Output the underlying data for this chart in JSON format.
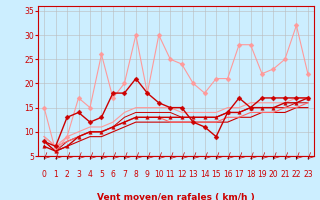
{
  "title": "",
  "xlabel": "Vent moyen/en rafales ( km/h )",
  "bg_color": "#cceeff",
  "grid_color": "#bbbbbb",
  "axis_color": "#cc0000",
  "label_color": "#cc0000",
  "xlim": [
    -0.5,
    23.5
  ],
  "ylim": [
    5,
    36
  ],
  "yticks": [
    5,
    10,
    15,
    20,
    25,
    30,
    35
  ],
  "xticks": [
    0,
    1,
    2,
    3,
    4,
    5,
    6,
    7,
    8,
    9,
    10,
    11,
    12,
    13,
    14,
    15,
    16,
    17,
    18,
    19,
    20,
    21,
    22,
    23
  ],
  "lines": [
    {
      "x": [
        0,
        1,
        2,
        3,
        4,
        5,
        6,
        7,
        8,
        9,
        10,
        11,
        12,
        13,
        14,
        15,
        16,
        17,
        18,
        19,
        20,
        21,
        22,
        23
      ],
      "y": [
        15,
        6,
        9,
        17,
        15,
        26,
        17,
        20,
        30,
        18,
        30,
        25,
        24,
        20,
        18,
        21,
        21,
        28,
        28,
        22,
        23,
        25,
        32,
        22
      ],
      "color": "#ff9999",
      "lw": 0.8,
      "marker": "D",
      "ms": 2.5
    },
    {
      "x": [
        0,
        1,
        2,
        3,
        4,
        5,
        6,
        7,
        8,
        9,
        10,
        11,
        12,
        13,
        14,
        15,
        16,
        17,
        18,
        19,
        20,
        21,
        22,
        23
      ],
      "y": [
        8,
        7,
        13,
        14,
        12,
        13,
        18,
        18,
        21,
        18,
        16,
        15,
        15,
        12,
        11,
        9,
        14,
        17,
        15,
        17,
        17,
        17,
        17,
        17
      ],
      "color": "#cc0000",
      "lw": 1.0,
      "marker": "D",
      "ms": 2.5
    },
    {
      "x": [
        0,
        1,
        2,
        3,
        4,
        5,
        6,
        7,
        8,
        9,
        10,
        11,
        12,
        13,
        14,
        15,
        16,
        17,
        18,
        19,
        20,
        21,
        22,
        23
      ],
      "y": [
        7,
        6,
        7,
        9,
        10,
        10,
        11,
        12,
        13,
        13,
        13,
        13,
        13,
        13,
        13,
        13,
        14,
        14,
        15,
        15,
        15,
        16,
        16,
        17
      ],
      "color": "#cc0000",
      "lw": 1.0,
      "marker": "^",
      "ms": 2.5
    },
    {
      "x": [
        0,
        1,
        2,
        3,
        4,
        5,
        6,
        7,
        8,
        9,
        10,
        11,
        12,
        13,
        14,
        15,
        16,
        17,
        18,
        19,
        20,
        21,
        22,
        23
      ],
      "y": [
        8,
        6,
        7,
        8,
        9,
        9,
        10,
        11,
        12,
        12,
        12,
        12,
        12,
        12,
        12,
        12,
        12,
        13,
        13,
        14,
        14,
        14,
        15,
        15
      ],
      "color": "#cc0000",
      "lw": 0.8,
      "marker": null,
      "ms": 0
    },
    {
      "x": [
        0,
        1,
        2,
        3,
        4,
        5,
        6,
        7,
        8,
        9,
        10,
        11,
        12,
        13,
        14,
        15,
        16,
        17,
        18,
        19,
        20,
        21,
        22,
        23
      ],
      "y": [
        8,
        6,
        8,
        9,
        10,
        10,
        11,
        13,
        14,
        14,
        14,
        14,
        13,
        13,
        13,
        13,
        14,
        14,
        15,
        15,
        15,
        15,
        16,
        16
      ],
      "color": "#cc0000",
      "lw": 0.7,
      "marker": null,
      "ms": 0
    },
    {
      "x": [
        0,
        1,
        2,
        3,
        4,
        5,
        6,
        7,
        8,
        9,
        10,
        11,
        12,
        13,
        14,
        15,
        16,
        17,
        18,
        19,
        20,
        21,
        22,
        23
      ],
      "y": [
        9,
        7,
        8,
        9,
        10,
        10,
        11,
        12,
        13,
        13,
        13,
        12,
        12,
        12,
        12,
        12,
        13,
        13,
        14,
        14,
        14,
        15,
        15,
        16
      ],
      "color": "#ff6666",
      "lw": 0.8,
      "marker": null,
      "ms": 0
    },
    {
      "x": [
        0,
        1,
        2,
        3,
        4,
        5,
        6,
        7,
        8,
        9,
        10,
        11,
        12,
        13,
        14,
        15,
        16,
        17,
        18,
        19,
        20,
        21,
        22,
        23
      ],
      "y": [
        9,
        7,
        9,
        10,
        11,
        11,
        12,
        14,
        15,
        15,
        15,
        15,
        14,
        14,
        14,
        14,
        15,
        15,
        16,
        16,
        16,
        16,
        17,
        17
      ],
      "color": "#ff9999",
      "lw": 0.8,
      "marker": null,
      "ms": 0
    }
  ],
  "arrow_color": "#cc0000",
  "xlabel_fontsize": 6.5,
  "tick_fontsize": 5.5,
  "tick_label_color": "#cc0000"
}
